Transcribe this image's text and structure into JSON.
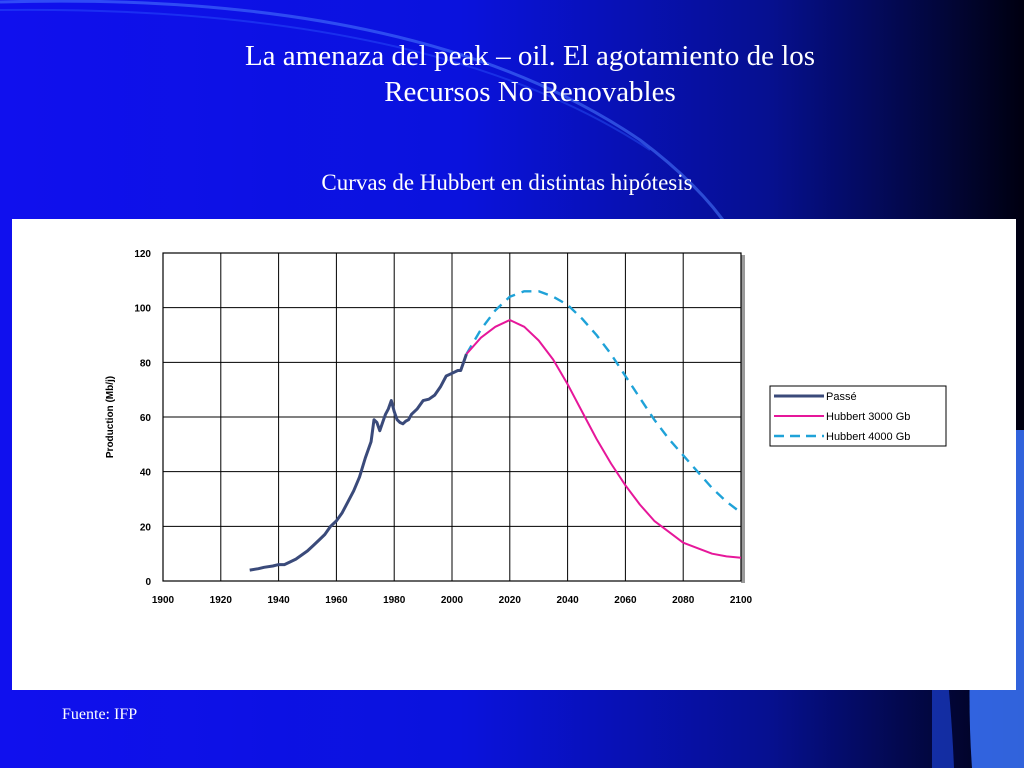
{
  "slide": {
    "title_line1": "La amenaza del peak – oil. El agotamiento de los",
    "title_line2": "Recursos No Renovables",
    "subtitle": "Curvas de Hubbert en distintas hipótesis",
    "source": "Fuente: IFP"
  },
  "colors": {
    "passe": "#3a4a7a",
    "hubbert3000": "#e6179a",
    "hubbert4000": "#1fa2d8",
    "grid": "#000000"
  },
  "chart_data": {
    "type": "line",
    "ylabel": "Production (Mb/j)",
    "xlim": [
      1900,
      2100
    ],
    "ylim": [
      0,
      120
    ],
    "x_ticks": [
      "1900",
      "1920",
      "1940",
      "1960",
      "1980",
      "2000",
      "2020",
      "2040",
      "2060",
      "2080",
      "2100"
    ],
    "y_ticks": [
      "0",
      "20",
      "40",
      "60",
      "80",
      "100",
      "120"
    ],
    "grid": true,
    "legend_position": "right",
    "series": [
      {
        "name": "Passé",
        "style": "solid",
        "points": [
          [
            1930,
            4
          ],
          [
            1933,
            4.5
          ],
          [
            1935,
            5
          ],
          [
            1938,
            5.5
          ],
          [
            1940,
            6
          ],
          [
            1942,
            6
          ],
          [
            1944,
            7
          ],
          [
            1946,
            8
          ],
          [
            1948,
            9.5
          ],
          [
            1950,
            11
          ],
          [
            1952,
            13
          ],
          [
            1954,
            15
          ],
          [
            1956,
            17
          ],
          [
            1958,
            20
          ],
          [
            1960,
            22
          ],
          [
            1962,
            25
          ],
          [
            1964,
            29
          ],
          [
            1966,
            33
          ],
          [
            1968,
            38
          ],
          [
            1970,
            45
          ],
          [
            1972,
            51
          ],
          [
            1973,
            59
          ],
          [
            1974,
            58
          ],
          [
            1975,
            55
          ],
          [
            1976,
            58
          ],
          [
            1977,
            61
          ],
          [
            1978,
            63
          ],
          [
            1979,
            66
          ],
          [
            1980,
            62
          ],
          [
            1981,
            59
          ],
          [
            1982,
            58
          ],
          [
            1983,
            57.5
          ],
          [
            1984,
            58.5
          ],
          [
            1985,
            59
          ],
          [
            1986,
            61
          ],
          [
            1988,
            63
          ],
          [
            1990,
            66
          ],
          [
            1992,
            66.5
          ],
          [
            1994,
            68
          ],
          [
            1996,
            71
          ],
          [
            1998,
            75
          ],
          [
            2000,
            76
          ],
          [
            2002,
            77
          ],
          [
            2003,
            77
          ],
          [
            2004,
            80
          ],
          [
            2005,
            83
          ]
        ]
      },
      {
        "name": "Hubbert 3000 Gb",
        "style": "solid",
        "points": [
          [
            2005,
            83
          ],
          [
            2010,
            89
          ],
          [
            2015,
            93
          ],
          [
            2020,
            95.5
          ],
          [
            2025,
            93
          ],
          [
            2030,
            88
          ],
          [
            2035,
            81
          ],
          [
            2040,
            72
          ],
          [
            2045,
            62
          ],
          [
            2050,
            52
          ],
          [
            2055,
            43
          ],
          [
            2060,
            35
          ],
          [
            2065,
            28
          ],
          [
            2070,
            22
          ],
          [
            2075,
            18
          ],
          [
            2080,
            14
          ],
          [
            2085,
            12
          ],
          [
            2090,
            10
          ],
          [
            2095,
            9
          ],
          [
            2100,
            8.5
          ]
        ]
      },
      {
        "name": "Hubbert 4000 Gb",
        "style": "dashed",
        "points": [
          [
            2005,
            83
          ],
          [
            2010,
            92
          ],
          [
            2015,
            99
          ],
          [
            2020,
            104
          ],
          [
            2025,
            106
          ],
          [
            2030,
            106
          ],
          [
            2035,
            104
          ],
          [
            2040,
            101
          ],
          [
            2045,
            96
          ],
          [
            2050,
            90
          ],
          [
            2055,
            83
          ],
          [
            2060,
            75
          ],
          [
            2065,
            67
          ],
          [
            2070,
            59
          ],
          [
            2075,
            52
          ],
          [
            2080,
            46
          ],
          [
            2085,
            40
          ],
          [
            2090,
            34
          ],
          [
            2095,
            29
          ],
          [
            2100,
            25
          ]
        ]
      }
    ]
  }
}
